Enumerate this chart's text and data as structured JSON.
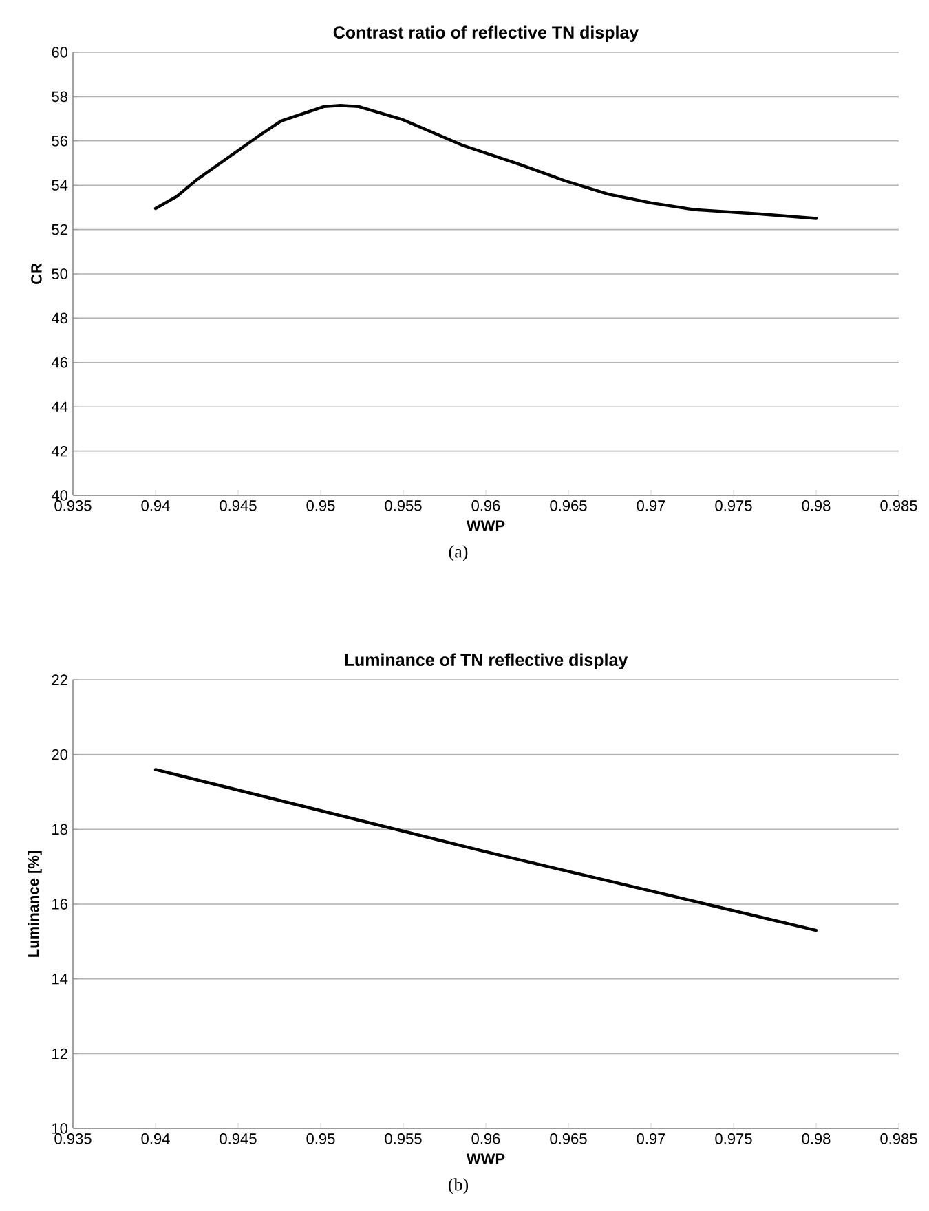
{
  "chart_data": [
    {
      "type": "line",
      "title": "Contrast ratio of reflective TN display",
      "xlabel": "WWP",
      "ylabel": "CR",
      "annotations": [
        "(a)"
      ],
      "x": [
        0.94,
        0.9413,
        0.9425,
        0.9463,
        0.9476,
        0.9502,
        0.9512,
        0.9523,
        0.955,
        0.9586,
        0.9622,
        0.9648,
        0.9674,
        0.97,
        0.9726,
        0.9766,
        0.98
      ],
      "values": [
        52.95,
        53.5,
        54.25,
        56.25,
        56.9,
        57.55,
        57.6,
        57.55,
        56.95,
        55.8,
        54.9,
        54.2,
        53.6,
        53.2,
        52.9,
        52.7,
        52.5
      ],
      "color": "#000000",
      "xlim": [
        0.935,
        0.985
      ],
      "ylim": [
        40,
        60
      ],
      "xticks": [
        0.935,
        0.94,
        0.945,
        0.95,
        0.955,
        0.96,
        0.965,
        0.97,
        0.975,
        0.98,
        0.985
      ],
      "yticks": [
        40,
        42,
        44,
        46,
        48,
        50,
        52,
        54,
        56,
        58,
        60
      ],
      "grid": "y"
    },
    {
      "type": "line",
      "title": "Luminance of TN reflective display",
      "xlabel": "WWP",
      "ylabel": "Luminance [%]",
      "annotations": [
        "(b)"
      ],
      "x": [
        0.94,
        0.96,
        0.98
      ],
      "values": [
        19.6,
        17.4,
        15.3
      ],
      "color": "#000000",
      "xlim": [
        0.935,
        0.985
      ],
      "ylim": [
        10,
        22
      ],
      "xticks": [
        0.935,
        0.94,
        0.945,
        0.95,
        0.955,
        0.96,
        0.965,
        0.97,
        0.975,
        0.98,
        0.985
      ],
      "yticks": [
        10,
        12,
        14,
        16,
        18,
        20,
        22
      ],
      "grid": "y"
    }
  ]
}
